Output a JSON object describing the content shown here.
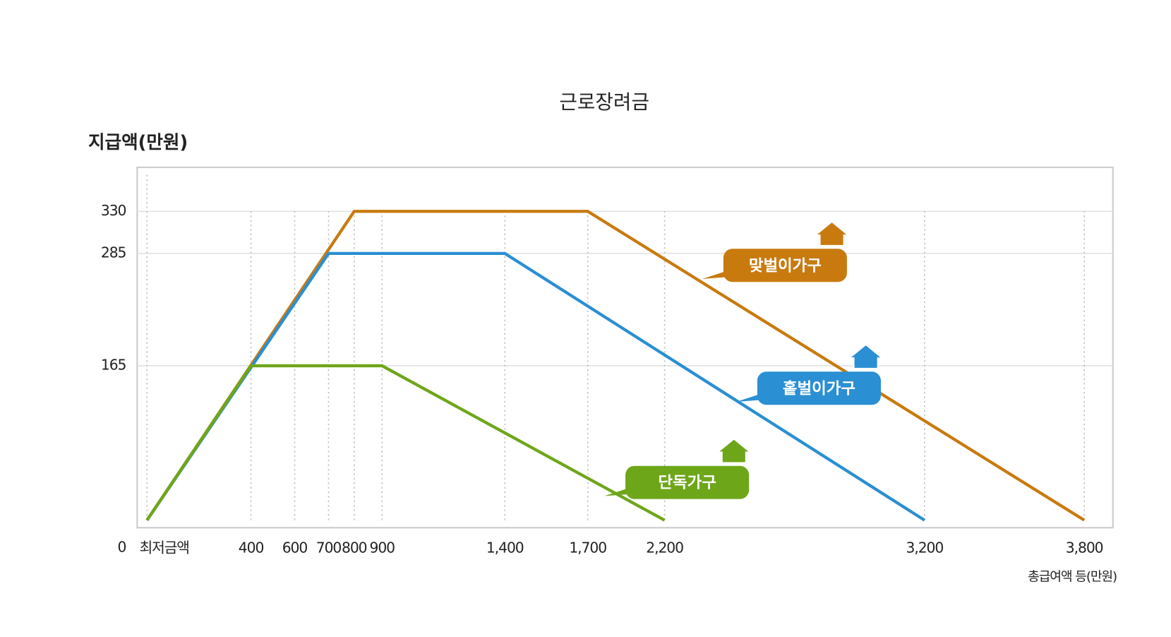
{
  "chart_data": {
    "type": "line",
    "title": "근로장려금",
    "y_label": "지급액(만원)",
    "x_label": "총급여액 등(만원)",
    "xticks": [
      {
        "value": 0,
        "label": "최저금액"
      },
      400,
      600,
      700,
      800,
      900,
      {
        "value": 1400,
        "label": "1,400"
      },
      {
        "value": 1700,
        "label": "1,700"
      },
      {
        "value": 2200,
        "label": "2,200"
      },
      {
        "value": 3200,
        "label": "3,200"
      },
      {
        "value": 3800,
        "label": "3,800"
      }
    ],
    "ylim": [
      -8,
      377
    ],
    "yticks": [
      0,
      165,
      285,
      330
    ],
    "series": [
      {
        "name": "맞벌이가구",
        "color": "#c97a0f",
        "x": [
          0,
          800,
          1700,
          3800
        ],
        "values": [
          0,
          330,
          330,
          0
        ]
      },
      {
        "name": "홑벌이가구",
        "color": "#2a8fd3",
        "x": [
          0,
          700,
          1400,
          3200
        ],
        "values": [
          0,
          285,
          285,
          0
        ]
      },
      {
        "name": "단독가구",
        "color": "#6ea619",
        "x": [
          0,
          400,
          900,
          2200
        ],
        "values": [
          0,
          165,
          165,
          0
        ]
      }
    ]
  }
}
